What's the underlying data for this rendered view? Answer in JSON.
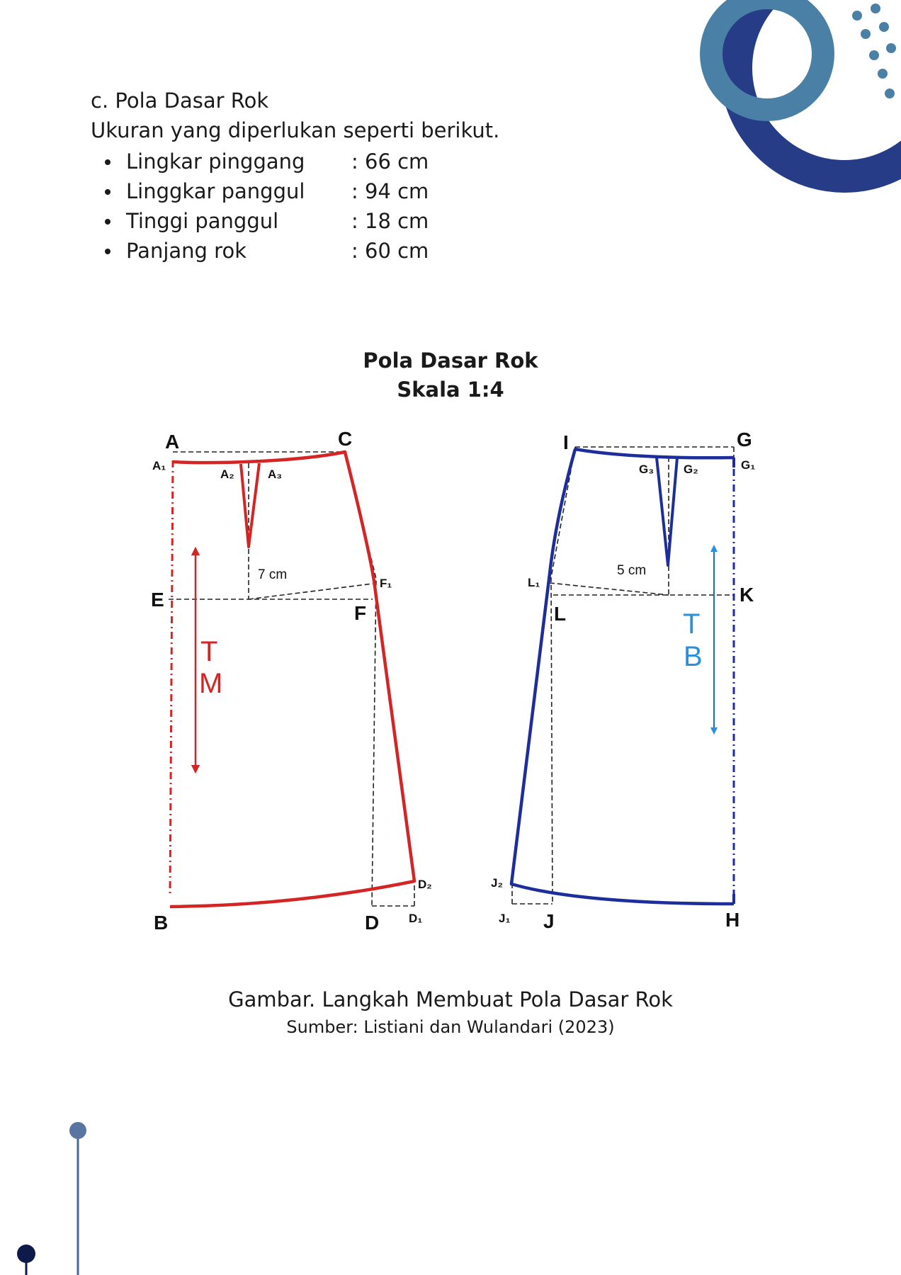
{
  "section_title": "c. Pola Dasar Rok",
  "intro": "Ukuran yang diperlukan seperti berikut.",
  "measurements": [
    {
      "label": "Lingkar pinggang",
      "value": ": 66 cm"
    },
    {
      "label": "Linggkar panggul",
      "value": ": 94 cm"
    },
    {
      "label": "Tinggi panggul",
      "value": ": 18 cm"
    },
    {
      "label": "Panjang rok",
      "value": ": 60 cm"
    }
  ],
  "figure": {
    "title": "Pola Dasar Rok",
    "scale": "Skala 1:4",
    "front_points": {
      "A": "A",
      "A1": "A₁",
      "A2": "A₂",
      "A3": "A₃",
      "C": "C",
      "E": "E",
      "F": "F",
      "F1": "F₁",
      "B": "B",
      "D": "D",
      "D1": "D₁",
      "D2": "D₂"
    },
    "front_dart_depth": "7 cm",
    "front_arrow_label": [
      "T",
      "M"
    ],
    "back_points": {
      "I": "I",
      "G": "G",
      "G1": "G₁",
      "G2": "G₂",
      "G3": "G₃",
      "L": "L",
      "L1": "L₁",
      "K": "K",
      "J": "J",
      "J1": "J₁",
      "J2": "J₂",
      "H": "H"
    },
    "back_dart_depth": "5 cm",
    "back_arrow_label": [
      "T",
      "B"
    ],
    "colors": {
      "front": "#d42424",
      "back": "#1d2e9c",
      "arrow_back": "#2a8fdc",
      "guide": "#222222"
    }
  },
  "caption": {
    "title": "Gambar. Langkah Membuat Pola Dasar  Rok",
    "source": "Sumber: Listiani dan Wulandari (2023)"
  },
  "decor": {
    "ring_outer": "#263c87",
    "ring_inner": "#4a7fa6",
    "dots": "#4a7fa6",
    "pin": "#0d1a4a"
  }
}
